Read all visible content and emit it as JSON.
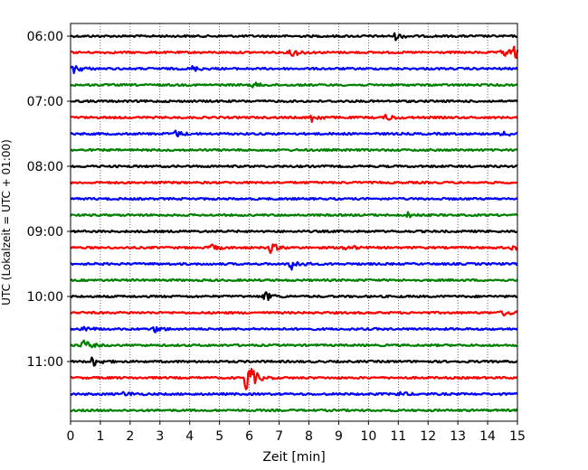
{
  "chart_data": {
    "type": "line",
    "title": "",
    "xlabel": "Zeit  [min]",
    "ylabel": "UTC (Lokalzeit = UTC + 01:00)",
    "xlim": [
      0,
      15
    ],
    "x_ticks": [
      0,
      1,
      2,
      3,
      4,
      5,
      6,
      7,
      8,
      9,
      10,
      11,
      12,
      13,
      14,
      15
    ],
    "y_tick_labels": [
      "06:00",
      "07:00",
      "08:00",
      "09:00",
      "10:00",
      "11:00"
    ],
    "grid": "vertical dotted",
    "traces_per_hour": 4,
    "trace_minutes": 15,
    "colors": [
      "#000000",
      "#ff0000",
      "#0000ff",
      "#008000"
    ],
    "traces": [
      {
        "start": "06:00",
        "events": [
          {
            "t": 10.9,
            "amp": 0.4
          }
        ]
      },
      {
        "start": "06:15",
        "events": [
          {
            "t": 7.4,
            "amp": 0.6
          },
          {
            "t": 14.5,
            "amp": 0.7
          },
          {
            "t": 14.9,
            "amp": 0.8
          }
        ]
      },
      {
        "start": "06:30",
        "events": [
          {
            "t": 0.1,
            "amp": 0.6
          },
          {
            "t": 4.1,
            "amp": 0.3
          }
        ]
      },
      {
        "start": "06:45",
        "events": [
          {
            "t": 6.1,
            "amp": 0.3
          }
        ]
      },
      {
        "start": "07:00",
        "events": []
      },
      {
        "start": "07:15",
        "events": [
          {
            "t": 8.1,
            "amp": 0.5
          },
          {
            "t": 10.6,
            "amp": 0.4
          }
        ]
      },
      {
        "start": "07:30",
        "events": [
          {
            "t": 3.5,
            "amp": 0.4
          },
          {
            "t": 14.5,
            "amp": 0.4
          }
        ]
      },
      {
        "start": "07:45",
        "events": []
      },
      {
        "start": "08:00",
        "events": []
      },
      {
        "start": "08:15",
        "events": []
      },
      {
        "start": "08:30",
        "events": []
      },
      {
        "start": "08:45",
        "events": [
          {
            "t": 11.3,
            "amp": 0.3
          }
        ]
      },
      {
        "start": "09:00",
        "events": []
      },
      {
        "start": "09:15",
        "events": [
          {
            "t": 4.7,
            "amp": 0.4
          },
          {
            "t": 6.7,
            "amp": 0.6
          },
          {
            "t": 9.2,
            "amp": 0.5
          },
          {
            "t": 14.8,
            "amp": 0.3
          }
        ]
      },
      {
        "start": "09:30",
        "events": [
          {
            "t": 7.4,
            "amp": 0.8
          }
        ]
      },
      {
        "start": "09:45",
        "events": []
      },
      {
        "start": "10:00",
        "events": [
          {
            "t": 6.5,
            "amp": 0.6
          }
        ]
      },
      {
        "start": "10:15",
        "events": [
          {
            "t": 14.5,
            "amp": 0.4
          }
        ]
      },
      {
        "start": "10:30",
        "events": [
          {
            "t": 0.4,
            "amp": 0.4
          },
          {
            "t": 2.8,
            "amp": 0.4
          }
        ]
      },
      {
        "start": "10:45",
        "events": [
          {
            "t": 0.4,
            "amp": 0.7
          }
        ]
      },
      {
        "start": "11:00",
        "events": [
          {
            "t": 0.7,
            "amp": 0.7
          }
        ]
      },
      {
        "start": "11:15",
        "events": [
          {
            "t": 5.9,
            "amp": 2.4
          }
        ]
      },
      {
        "start": "11:30",
        "events": [
          {
            "t": 1.8,
            "amp": 0.3
          },
          {
            "t": 11.0,
            "amp": 0.3
          }
        ]
      },
      {
        "start": "11:45",
        "events": []
      }
    ]
  }
}
